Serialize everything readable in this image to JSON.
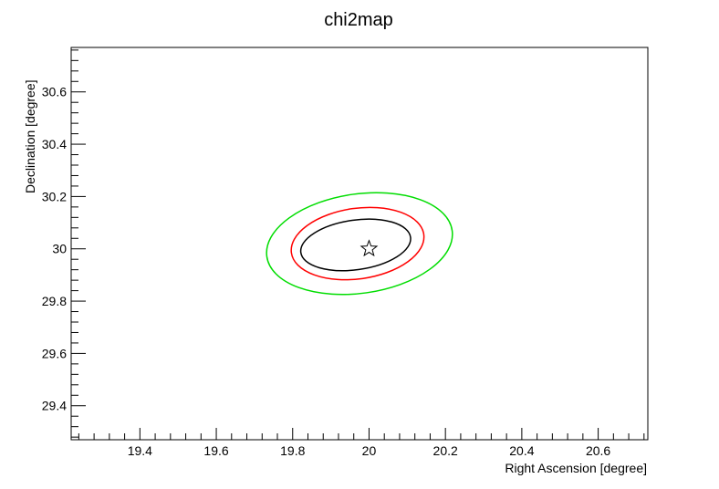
{
  "chart_data": {
    "type": "contour",
    "title": "chi2map",
    "xlabel": "Right Ascension [degree]",
    "ylabel": "Declination [degree]",
    "xlim": [
      19.22,
      20.73
    ],
    "ylim": [
      29.27,
      30.77
    ],
    "xticks": [
      19.4,
      19.6,
      19.8,
      20,
      20.2,
      20.4,
      20.6
    ],
    "xtick_labels": [
      "19.4",
      "19.6",
      "19.8",
      "20",
      "20.2",
      "20.4",
      "20.6"
    ],
    "yticks": [
      29.4,
      29.6,
      29.8,
      30,
      30.2,
      30.4,
      30.6
    ],
    "ytick_labels": [
      "29.4",
      "29.6",
      "29.8",
      "30",
      "30.2",
      "30.4",
      "30.6"
    ],
    "best_fit": {
      "x": 20.0,
      "y": 30.0,
      "marker": "star"
    },
    "contours": [
      {
        "color": "#000000",
        "center": [
          19.965,
          30.015
        ],
        "semi_axes": [
          0.145,
          0.095
        ],
        "angle_deg": 8
      },
      {
        "color": "#ff0000",
        "center": [
          19.97,
          30.02
        ],
        "semi_axes": [
          0.175,
          0.135
        ],
        "angle_deg": 8
      },
      {
        "color": "#00dd00",
        "center": [
          19.975,
          30.02
        ],
        "semi_axes": [
          0.245,
          0.19
        ],
        "angle_deg": 8
      }
    ]
  }
}
